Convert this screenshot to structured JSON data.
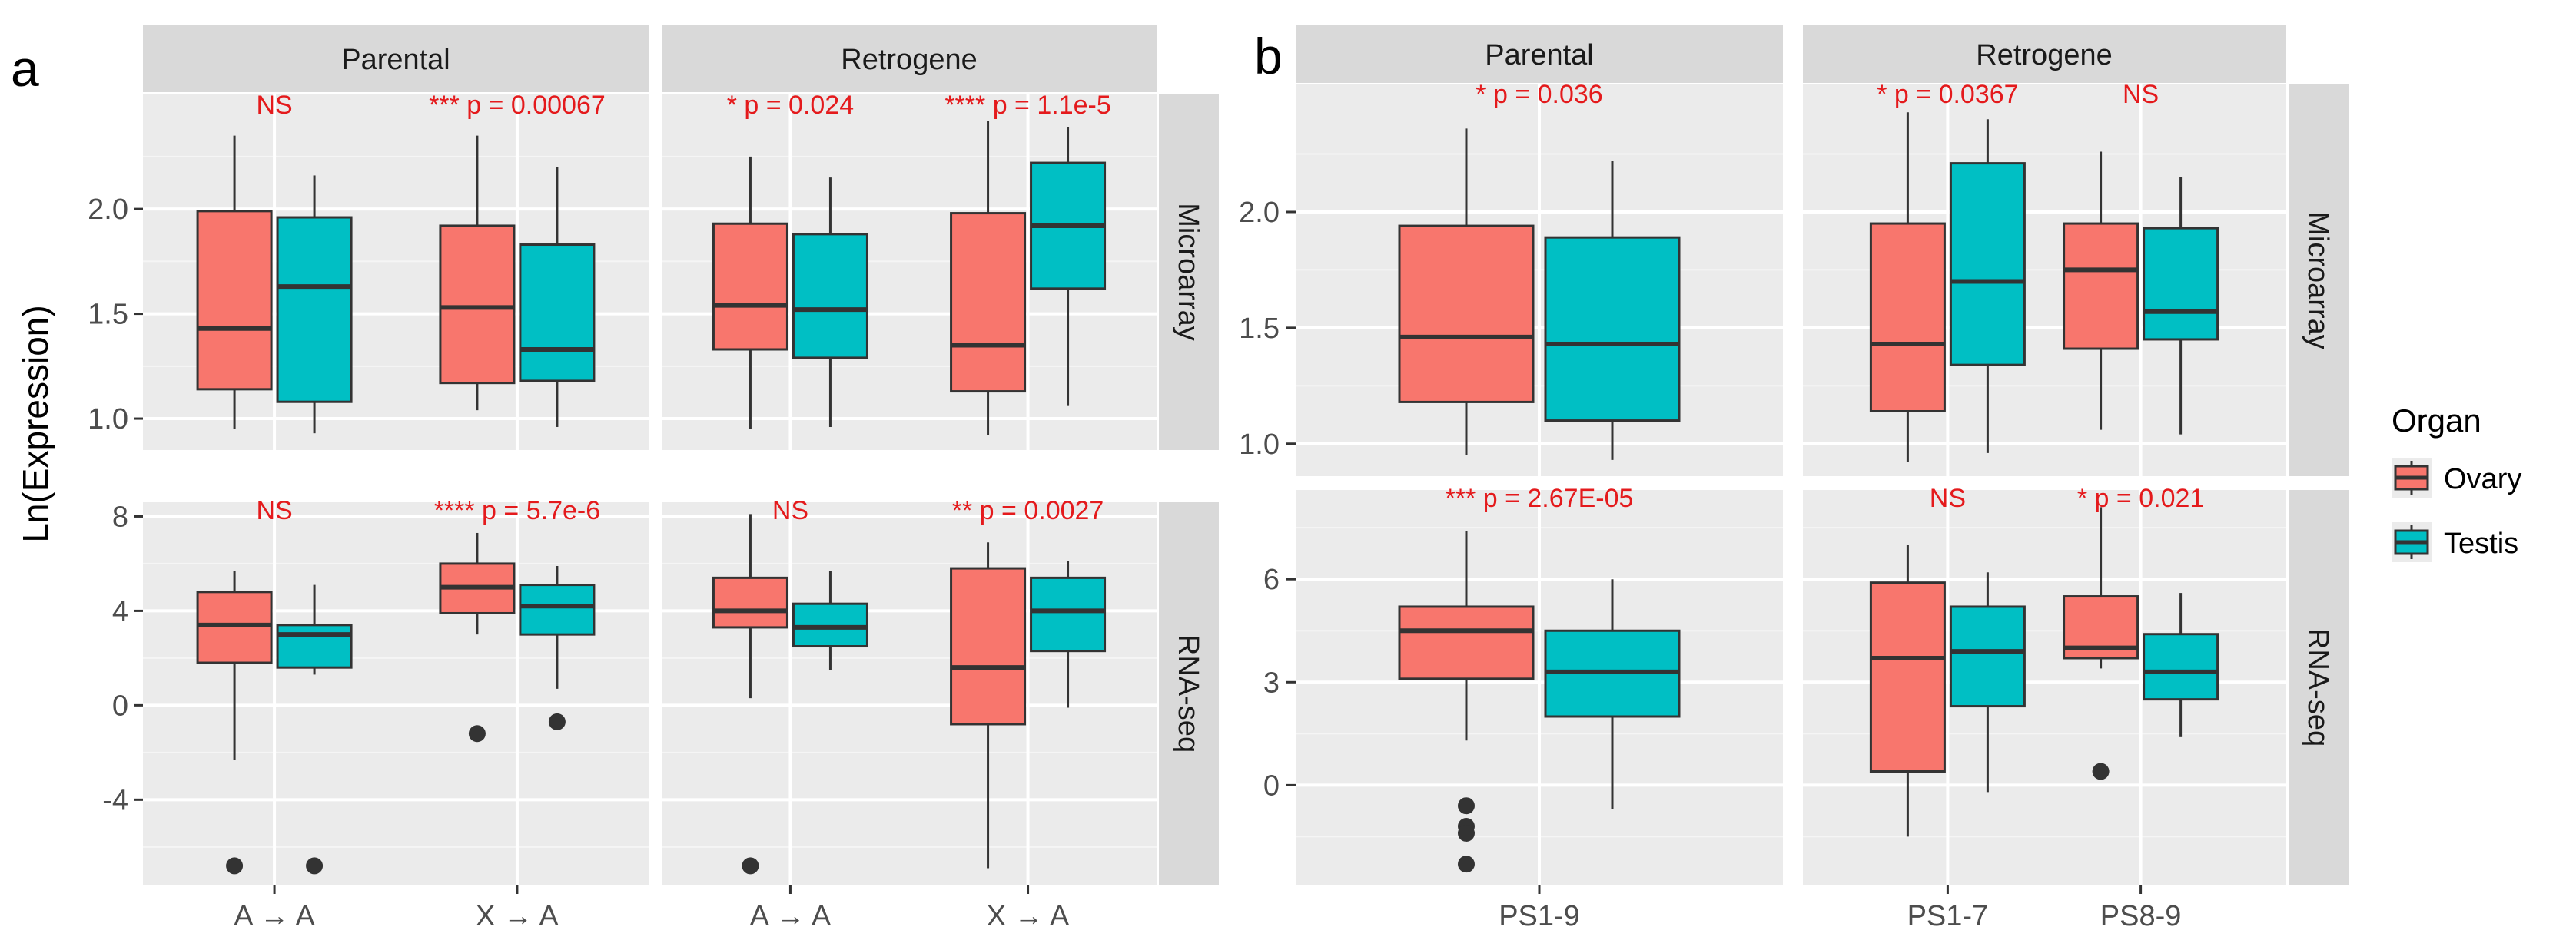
{
  "figure": {
    "panel_a_label": "a",
    "panel_b_label": "b",
    "y_axis_label": "Ln(Expression)"
  },
  "legend": {
    "title": "Organ",
    "items": [
      {
        "label": "Ovary",
        "color": "#F8766D"
      },
      {
        "label": "Testis",
        "color": "#00BFC4"
      }
    ]
  },
  "chart_data": [
    {
      "type": "boxplot",
      "id": "a",
      "col_facets": [
        "Parental",
        "Retrogene"
      ],
      "row_facets": [
        "Microarray",
        "RNA-seq"
      ],
      "x_categories": [
        "A → A",
        "X → A"
      ],
      "rows": [
        {
          "name": "Microarray",
          "ylim": [
            0.85,
            2.55
          ],
          "yticks": [
            1.0,
            1.5,
            2.0
          ],
          "ytick_labels": [
            "1.0",
            "1.5",
            "2.0"
          ]
        },
        {
          "name": "RNA-seq",
          "ylim": [
            -7.6,
            8.6
          ],
          "yticks": [
            -4,
            0,
            4,
            8
          ],
          "ytick_labels": [
            "-4",
            "0",
            "4",
            "8"
          ]
        }
      ],
      "panels": [
        {
          "col": "Parental",
          "row": "Microarray",
          "annotations": [
            "NS",
            "*** p = 0.00067"
          ],
          "boxes": [
            {
              "x": "A → A",
              "organ": "Ovary",
              "min": 0.95,
              "q1": 1.14,
              "median": 1.43,
              "q3": 1.99,
              "max": 2.35,
              "outliers": []
            },
            {
              "x": "A → A",
              "organ": "Testis",
              "min": 0.93,
              "q1": 1.08,
              "median": 1.63,
              "q3": 1.96,
              "max": 2.16,
              "outliers": []
            },
            {
              "x": "X → A",
              "organ": "Ovary",
              "min": 1.04,
              "q1": 1.17,
              "median": 1.53,
              "q3": 1.92,
              "max": 2.35,
              "outliers": []
            },
            {
              "x": "X → A",
              "organ": "Testis",
              "min": 0.96,
              "q1": 1.18,
              "median": 1.33,
              "q3": 1.83,
              "max": 2.2,
              "outliers": []
            }
          ]
        },
        {
          "col": "Retrogene",
          "row": "Microarray",
          "annotations": [
            "* p = 0.024",
            "**** p = 1.1e-5"
          ],
          "boxes": [
            {
              "x": "A → A",
              "organ": "Ovary",
              "min": 0.95,
              "q1": 1.33,
              "median": 1.54,
              "q3": 1.93,
              "max": 2.25,
              "outliers": []
            },
            {
              "x": "A → A",
              "organ": "Testis",
              "min": 0.96,
              "q1": 1.29,
              "median": 1.52,
              "q3": 1.88,
              "max": 2.15,
              "outliers": []
            },
            {
              "x": "X → A",
              "organ": "Ovary",
              "min": 0.92,
              "q1": 1.13,
              "median": 1.35,
              "q3": 1.98,
              "max": 2.42,
              "outliers": []
            },
            {
              "x": "X → A",
              "organ": "Testis",
              "min": 1.06,
              "q1": 1.62,
              "median": 1.92,
              "q3": 2.22,
              "max": 2.39,
              "outliers": []
            }
          ]
        },
        {
          "col": "Parental",
          "row": "RNA-seq",
          "annotations": [
            "NS",
            "**** p = 5.7e-6"
          ],
          "boxes": [
            {
              "x": "A → A",
              "organ": "Ovary",
              "min": -2.3,
              "q1": 1.8,
              "median": 3.4,
              "q3": 4.8,
              "max": 5.7,
              "outliers": [
                -6.8
              ]
            },
            {
              "x": "A → A",
              "organ": "Testis",
              "min": 1.3,
              "q1": 1.6,
              "median": 3.0,
              "q3": 3.4,
              "max": 5.1,
              "outliers": [
                -6.8
              ]
            },
            {
              "x": "X → A",
              "organ": "Ovary",
              "min": 3.0,
              "q1": 3.9,
              "median": 5.0,
              "q3": 6.0,
              "max": 7.3,
              "outliers": [
                -1.2
              ]
            },
            {
              "x": "X → A",
              "organ": "Testis",
              "min": 0.7,
              "q1": 3.0,
              "median": 4.2,
              "q3": 5.1,
              "max": 5.9,
              "outliers": [
                -0.7
              ]
            }
          ]
        },
        {
          "col": "Retrogene",
          "row": "RNA-seq",
          "annotations": [
            "NS",
            "** p = 0.0027"
          ],
          "boxes": [
            {
              "x": "A → A",
              "organ": "Ovary",
              "min": 0.3,
              "q1": 3.3,
              "median": 4.0,
              "q3": 5.4,
              "max": 8.1,
              "outliers": [
                -6.8
              ]
            },
            {
              "x": "A → A",
              "organ": "Testis",
              "min": 1.5,
              "q1": 2.5,
              "median": 3.3,
              "q3": 4.3,
              "max": 5.7,
              "outliers": []
            },
            {
              "x": "X → A",
              "organ": "Ovary",
              "min": -6.9,
              "q1": -0.8,
              "median": 1.6,
              "q3": 5.8,
              "max": 6.9,
              "outliers": []
            },
            {
              "x": "X → A",
              "organ": "Testis",
              "min": -0.1,
              "q1": 2.3,
              "median": 4.0,
              "q3": 5.4,
              "max": 6.1,
              "outliers": []
            }
          ]
        }
      ]
    },
    {
      "type": "boxplot",
      "id": "b",
      "col_facets": [
        "Parental",
        "Retrogene"
      ],
      "row_facets": [
        "Microarray",
        "RNA-seq"
      ],
      "x_categories_by_col": [
        [
          "PS1-9"
        ],
        [
          "PS1-7",
          "PS8-9"
        ]
      ],
      "rows": [
        {
          "name": "Microarray",
          "ylim": [
            0.86,
            2.55
          ],
          "yticks": [
            1.0,
            1.5,
            2.0
          ],
          "ytick_labels": [
            "1.0",
            "1.5",
            "2.0"
          ]
        },
        {
          "name": "RNA-seq",
          "ylim": [
            -2.9,
            8.6
          ],
          "yticks": [
            0,
            3,
            6
          ],
          "ytick_labels": [
            "0",
            "3",
            "6"
          ]
        }
      ],
      "panels": [
        {
          "col": "Parental",
          "row": "Microarray",
          "annotations": [
            "* p = 0.036"
          ],
          "boxes": [
            {
              "x": "PS1-9",
              "organ": "Ovary",
              "min": 0.95,
              "q1": 1.18,
              "median": 1.46,
              "q3": 1.94,
              "max": 2.36,
              "outliers": []
            },
            {
              "x": "PS1-9",
              "organ": "Testis",
              "min": 0.93,
              "q1": 1.1,
              "median": 1.43,
              "q3": 1.89,
              "max": 2.22,
              "outliers": []
            }
          ]
        },
        {
          "col": "Retrogene",
          "row": "Microarray",
          "annotations": [
            "* p = 0.0367",
            "NS"
          ],
          "boxes": [
            {
              "x": "PS1-7",
              "organ": "Ovary",
              "min": 0.92,
              "q1": 1.14,
              "median": 1.43,
              "q3": 1.95,
              "max": 2.43,
              "outliers": []
            },
            {
              "x": "PS1-7",
              "organ": "Testis",
              "min": 0.96,
              "q1": 1.34,
              "median": 1.7,
              "q3": 2.21,
              "max": 2.4,
              "outliers": []
            },
            {
              "x": "PS8-9",
              "organ": "Ovary",
              "min": 1.06,
              "q1": 1.41,
              "median": 1.75,
              "q3": 1.95,
              "max": 2.26,
              "outliers": []
            },
            {
              "x": "PS8-9",
              "organ": "Testis",
              "min": 1.04,
              "q1": 1.45,
              "median": 1.57,
              "q3": 1.93,
              "max": 2.15,
              "outliers": []
            }
          ]
        },
        {
          "col": "Parental",
          "row": "RNA-seq",
          "annotations": [
            "*** p = 2.67E-05"
          ],
          "boxes": [
            {
              "x": "PS1-9",
              "organ": "Ovary",
              "min": 1.3,
              "q1": 3.1,
              "median": 4.5,
              "q3": 5.2,
              "max": 7.4,
              "outliers": [
                -0.6,
                -1.2,
                -1.4,
                -2.3
              ]
            },
            {
              "x": "PS1-9",
              "organ": "Testis",
              "min": -0.7,
              "q1": 2.0,
              "median": 3.3,
              "q3": 4.5,
              "max": 6.0,
              "outliers": []
            }
          ]
        },
        {
          "col": "Retrogene",
          "row": "RNA-seq",
          "annotations": [
            "NS",
            "* p = 0.021"
          ],
          "boxes": [
            {
              "x": "PS1-7",
              "organ": "Ovary",
              "min": -1.5,
              "q1": 0.4,
              "median": 3.7,
              "q3": 5.9,
              "max": 7.0,
              "outliers": []
            },
            {
              "x": "PS1-7",
              "organ": "Testis",
              "min": -0.2,
              "q1": 2.3,
              "median": 3.9,
              "q3": 5.2,
              "max": 6.2,
              "outliers": []
            },
            {
              "x": "PS8-9",
              "organ": "Ovary",
              "min": 3.4,
              "q1": 3.7,
              "median": 4.0,
              "q3": 5.5,
              "max": 8.1,
              "outliers": [
                0.4
              ]
            },
            {
              "x": "PS8-9",
              "organ": "Testis",
              "min": 1.4,
              "q1": 2.5,
              "median": 3.3,
              "q3": 4.4,
              "max": 5.6,
              "outliers": []
            }
          ]
        }
      ]
    }
  ]
}
